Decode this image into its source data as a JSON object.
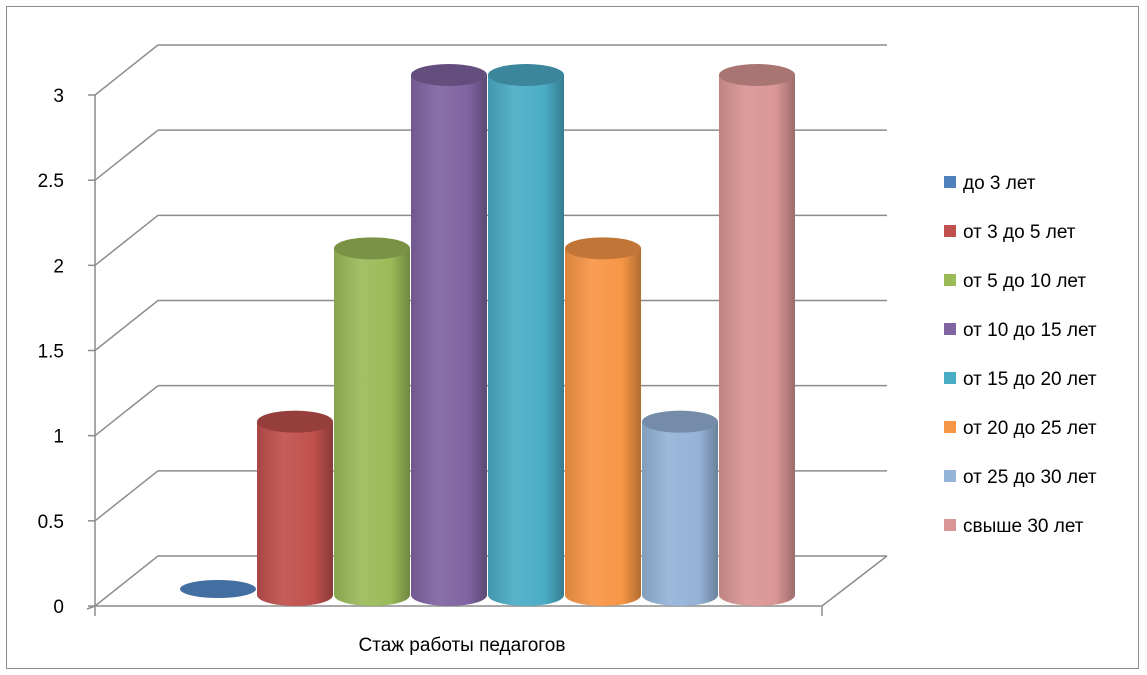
{
  "chart_data": {
    "type": "bar",
    "style": "3d-cylinder",
    "x_category": "Стаж работы педагогов",
    "series": [
      {
        "name": "до 3 лет",
        "value": 0,
        "color": "#4F81BD"
      },
      {
        "name": "от 3 до 5 лет",
        "value": 1,
        "color": "#C0504D"
      },
      {
        "name": "от 5 до 10 лет",
        "value": 2,
        "color": "#9BBB59"
      },
      {
        "name": "от 10 до 15 лет",
        "value": 3,
        "color": "#8064A2"
      },
      {
        "name": "от 15 до 20 лет",
        "value": 3,
        "color": "#4BACC6"
      },
      {
        "name": "от 20 до 25 лет",
        "value": 2,
        "color": "#F79646"
      },
      {
        "name": "от 25 до 30 лет",
        "value": 1,
        "color": "#95B3D7"
      },
      {
        "name": "свыше 30 лет",
        "value": 3,
        "color": "#D99694"
      }
    ],
    "y_ticks": [
      "0",
      "0.5",
      "1",
      "1.5",
      "2",
      "2.5",
      "3"
    ],
    "ylim": [
      0,
      3
    ],
    "grid": true,
    "legend_position": "right"
  }
}
